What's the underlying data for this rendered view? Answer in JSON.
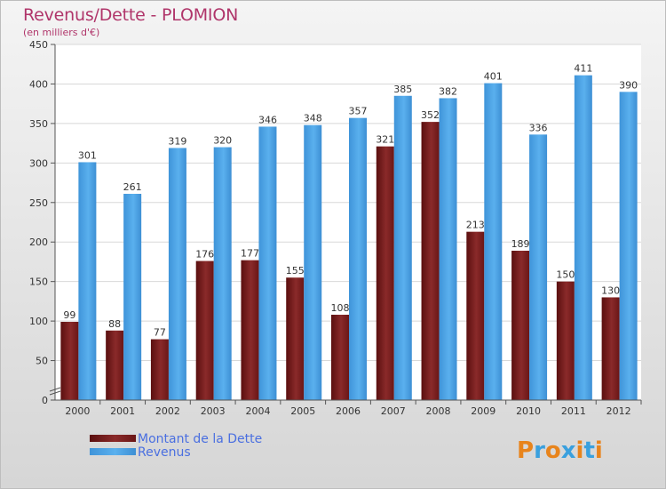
{
  "header": {
    "title": "Revenus/Dette - PLOMION",
    "subtitle": "(en milliers d'€)"
  },
  "chart_data": {
    "type": "bar",
    "title": "Revenus/Dette - PLOMION",
    "subtitle": "(en milliers d'€)",
    "categories": [
      "2000",
      "2001",
      "2002",
      "2003",
      "2004",
      "2005",
      "2006",
      "2007",
      "2008",
      "2009",
      "2010",
      "2011",
      "2012"
    ],
    "series": [
      {
        "name": "Montant de la Dette",
        "color": "#7a1a1a",
        "values": [
          99,
          88,
          77,
          176,
          177,
          155,
          108,
          321,
          352,
          213,
          189,
          150,
          130
        ]
      },
      {
        "name": "Revenus",
        "color": "#4aa3e8",
        "values": [
          301,
          261,
          319,
          320,
          346,
          348,
          357,
          385,
          382,
          401,
          336,
          411,
          390
        ]
      }
    ],
    "ylim": [
      0,
      450
    ],
    "yticks": [
      0,
      50,
      100,
      150,
      200,
      250,
      300,
      350,
      400,
      450
    ],
    "grid": true,
    "legend_position": "bottom-left",
    "xlabel": "",
    "ylabel": ""
  },
  "logo": {
    "text": "Proxiti",
    "colors": [
      "#e8841c",
      "#3aa0de",
      "#e8841c",
      "#3aa0de",
      "#e8841c",
      "#3aa0de",
      "#e8841c"
    ]
  }
}
